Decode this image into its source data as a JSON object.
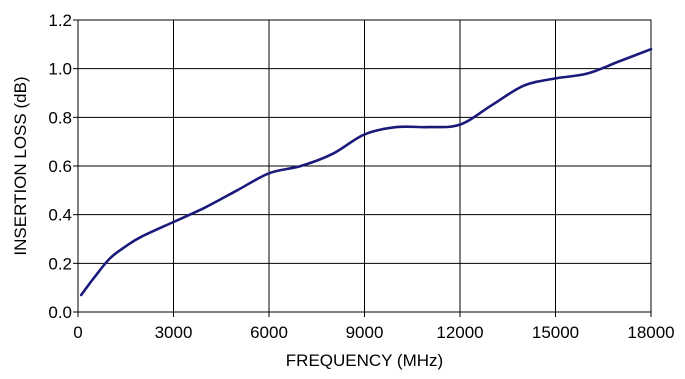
{
  "chart_data": {
    "type": "line",
    "title": "",
    "xlabel": "FREQUENCY (MHz)",
    "ylabel": "INSERTION LOSS (dB)",
    "xlim": [
      0,
      18000
    ],
    "ylim": [
      0,
      1.2
    ],
    "xticks": [
      "0",
      "3000",
      "6000",
      "9000",
      "12000",
      "15000",
      "18000"
    ],
    "yticks": [
      "0.0",
      "0.2",
      "0.4",
      "0.6",
      "0.8",
      "1.0",
      "1.2"
    ],
    "grid": true,
    "legend": "none",
    "series": [
      {
        "color": "#1a1a7a",
        "x": [
          100,
          500,
          1000,
          1500,
          2000,
          3000,
          4000,
          5000,
          6000,
          7000,
          8000,
          9000,
          10000,
          11000,
          12000,
          13000,
          14000,
          15000,
          16000,
          17000,
          18000
        ],
        "y": [
          0.07,
          0.14,
          0.22,
          0.27,
          0.31,
          0.37,
          0.43,
          0.5,
          0.57,
          0.6,
          0.65,
          0.73,
          0.76,
          0.76,
          0.77,
          0.85,
          0.93,
          0.96,
          0.98,
          1.03,
          1.08
        ]
      }
    ]
  }
}
